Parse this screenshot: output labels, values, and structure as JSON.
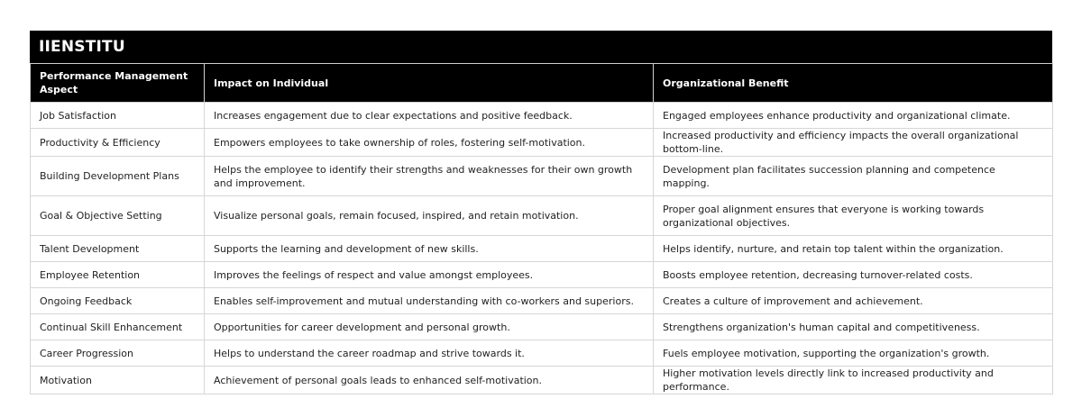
{
  "brand": "IIENSTITU",
  "table": {
    "headers": [
      "Performance Management Aspect",
      "Impact on Individual",
      "Organizational Benefit"
    ],
    "rows": [
      [
        "Job Satisfaction",
        "Increases engagement due to clear expectations and positive feedback.",
        "Engaged employees enhance productivity and organizational climate."
      ],
      [
        "Productivity & Efficiency",
        "Empowers employees to take ownership of roles, fostering self-motivation.",
        "Increased productivity and efficiency impacts the overall organizational bottom-line."
      ],
      [
        "Building Development Plans",
        "Helps the employee to identify their strengths and weaknesses for their own growth and improvement.",
        "Development plan facilitates succession planning and competence mapping."
      ],
      [
        "Goal & Objective Setting",
        "Visualize personal goals, remain focused, inspired, and retain motivation.",
        "Proper goal alignment ensures that everyone is working towards organizational objectives."
      ],
      [
        "Talent Development",
        "Supports the learning and development of new skills.",
        "Helps identify, nurture, and retain top talent within the organization."
      ],
      [
        "Employee Retention",
        "Improves the feelings of respect and value amongst employees.",
        "Boosts employee retention, decreasing turnover-related costs."
      ],
      [
        "Ongoing Feedback",
        "Enables self-improvement and mutual understanding with co-workers and superiors.",
        "Creates a culture of improvement and achievement."
      ],
      [
        "Continual Skill Enhancement",
        "Opportunities for career development and personal growth.",
        "Strengthens organization's human capital and competitiveness."
      ],
      [
        "Career Progression",
        "Helps to understand the career roadmap and strive towards it.",
        "Fuels employee motivation, supporting the organization's growth."
      ],
      [
        "Motivation",
        "Achievement of personal goals leads to enhanced self-motivation.",
        "Higher motivation levels directly link to increased productivity and performance."
      ]
    ]
  }
}
